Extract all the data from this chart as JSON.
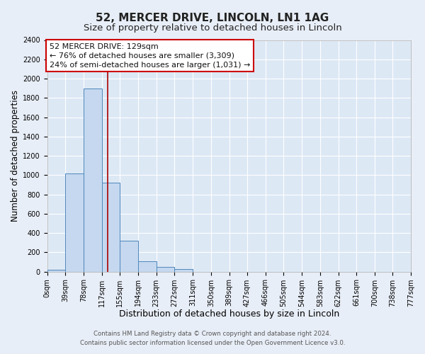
{
  "title": "52, MERCER DRIVE, LINCOLN, LN1 1AG",
  "subtitle": "Size of property relative to detached houses in Lincoln",
  "xlabel": "Distribution of detached houses by size in Lincoln",
  "ylabel": "Number of detached properties",
  "bin_edges": [
    0,
    39,
    78,
    117,
    155,
    194,
    233,
    272,
    311,
    350,
    389,
    427,
    466,
    505,
    544,
    583,
    622,
    661,
    700,
    738,
    777
  ],
  "bin_labels": [
    "0sqm",
    "39sqm",
    "78sqm",
    "117sqm",
    "155sqm",
    "194sqm",
    "233sqm",
    "272sqm",
    "311sqm",
    "350sqm",
    "389sqm",
    "427sqm",
    "466sqm",
    "505sqm",
    "544sqm",
    "583sqm",
    "622sqm",
    "661sqm",
    "700sqm",
    "738sqm",
    "777sqm"
  ],
  "counts": [
    20,
    1020,
    1900,
    920,
    320,
    105,
    50,
    30,
    0,
    0,
    0,
    0,
    0,
    0,
    0,
    0,
    0,
    0,
    0,
    0
  ],
  "ylim": [
    0,
    2400
  ],
  "yticks": [
    0,
    200,
    400,
    600,
    800,
    1000,
    1200,
    1400,
    1600,
    1800,
    2000,
    2200,
    2400
  ],
  "property_line_x": 129,
  "bar_color": "#c5d8ef",
  "bar_edge_color": "#4f87bc",
  "line_color": "#aa0000",
  "annotation_title": "52 MERCER DRIVE: 129sqm",
  "annotation_line1": "← 76% of detached houses are smaller (3,309)",
  "annotation_line2": "24% of semi-detached houses are larger (1,031) →",
  "annotation_box_facecolor": "#ffffff",
  "annotation_box_edgecolor": "#cc0000",
  "plot_bg_color": "#dde8f5",
  "fig_bg_color": "#e8eef7",
  "grid_color": "#ffffff",
  "footer1": "Contains HM Land Registry data © Crown copyright and database right 2024.",
  "footer2": "Contains public sector information licensed under the Open Government Licence v3.0.",
  "title_fontsize": 11,
  "subtitle_fontsize": 9.5,
  "xlabel_fontsize": 9,
  "ylabel_fontsize": 8.5,
  "tick_fontsize": 7,
  "annot_fontsize": 8
}
